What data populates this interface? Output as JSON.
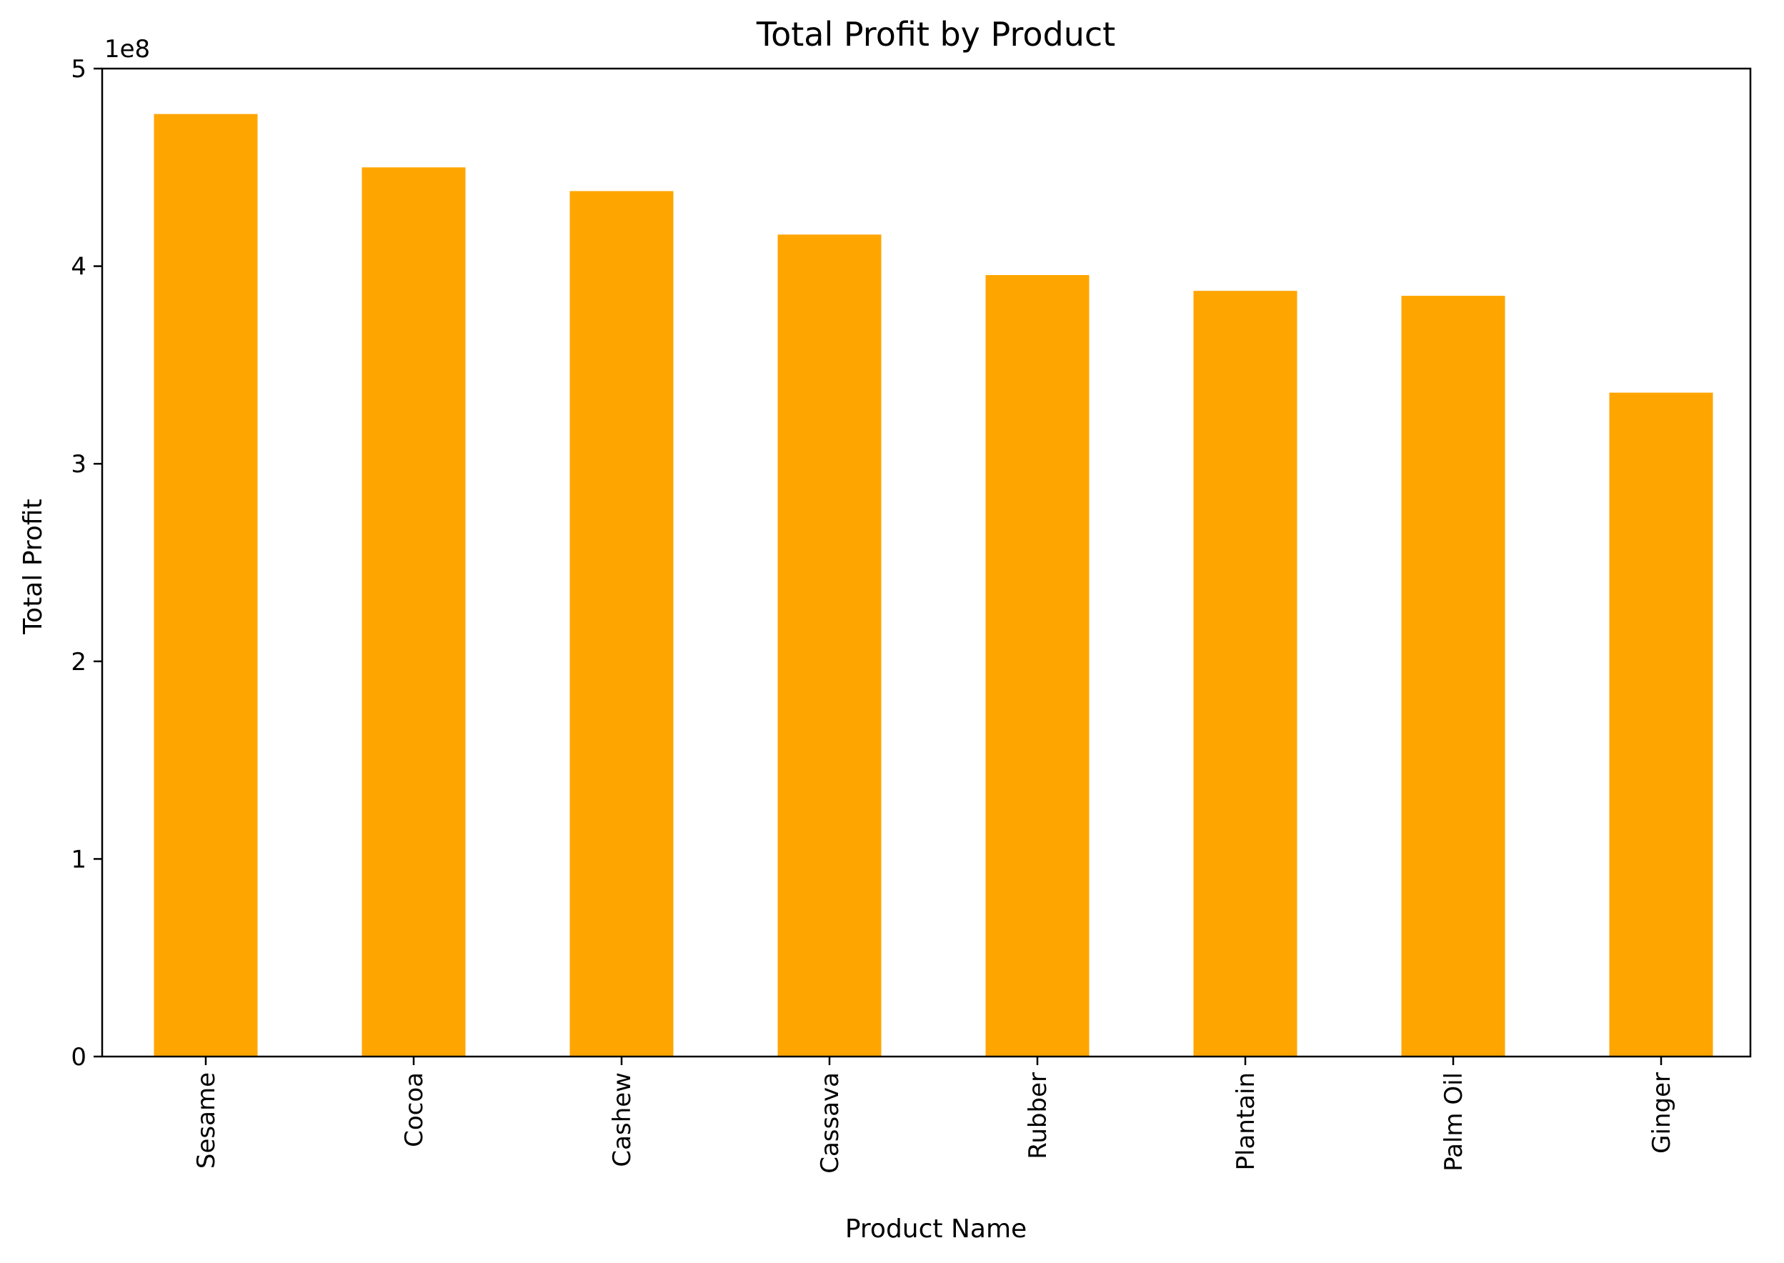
{
  "chart_data": {
    "type": "bar",
    "title": "Total Profit by Product",
    "xlabel": "Product Name",
    "ylabel": "Total Profit",
    "offset_text": "1e8",
    "categories": [
      "Sesame",
      "Cocoa",
      "Cashew",
      "Cassava",
      "Rubber",
      "Plantain",
      "Palm Oil",
      "Ginger"
    ],
    "values": [
      477000000,
      450000000,
      438000000,
      416000000,
      395500000,
      387500000,
      385000000,
      336000000
    ],
    "ylim": [
      0,
      500000000
    ],
    "yticks": [
      {
        "value": 0,
        "label": "0"
      },
      {
        "value": 100000000,
        "label": "1"
      },
      {
        "value": 200000000,
        "label": "2"
      },
      {
        "value": 300000000,
        "label": "3"
      },
      {
        "value": 400000000,
        "label": "4"
      },
      {
        "value": 500000000,
        "label": "5"
      }
    ],
    "bar_color": "#FFA500",
    "grid": false,
    "legend": "none"
  }
}
